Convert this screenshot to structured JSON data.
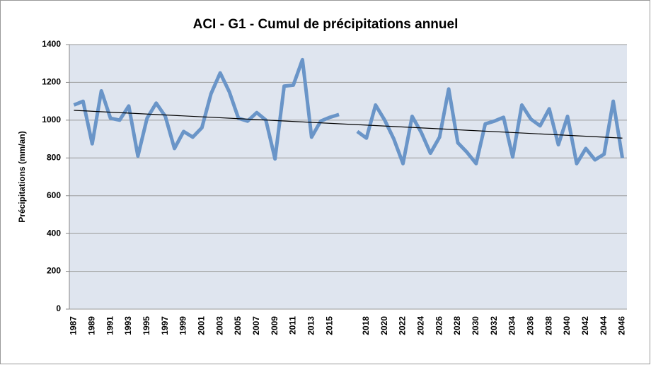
{
  "chart_data": {
    "type": "line",
    "title": "ACI - G1 - Cumul de précipitations annuel",
    "y_label": "Précipitations (mm/an)",
    "categories": [
      "1987",
      null,
      "1989",
      null,
      "1991",
      null,
      "1993",
      null,
      "1995",
      null,
      "1997",
      null,
      "1999",
      null,
      "2001",
      null,
      "2003",
      null,
      "2005",
      null,
      "2007",
      null,
      "2009",
      null,
      "2011",
      null,
      "2013",
      null,
      "2015",
      null,
      null,
      null,
      "2018",
      null,
      "2020",
      null,
      "2022",
      null,
      "2024",
      null,
      "2026",
      null,
      "2028",
      null,
      "2030",
      null,
      "2032",
      null,
      "2034",
      null,
      "2036",
      null,
      "2038",
      null,
      "2040",
      null,
      "2042",
      null,
      "2044",
      null,
      "2046"
    ],
    "series": [
      {
        "color": "#6a95c8",
        "values": [
          1080,
          1100,
          875,
          1155,
          1010,
          1000,
          1075,
          810,
          1010,
          1090,
          1020,
          850,
          940,
          910,
          960,
          1140,
          1250,
          1150,
          1010,
          995,
          1040,
          1000,
          795,
          1180,
          1185,
          1320,
          910,
          995,
          1015,
          1030,
          null,
          940,
          905,
          1080,
          1000,
          900,
          770,
          1020,
          935,
          825,
          910,
          1165,
          880,
          830,
          770,
          980,
          995,
          1015,
          805,
          1080,
          1005,
          970,
          1060,
          870,
          1020,
          770,
          850,
          790,
          820,
          1100,
          800
        ]
      }
    ],
    "trendline": {
      "color": "#000000",
      "start": 1052,
      "end": 905
    },
    "ylim": [
      0,
      1400
    ],
    "yticks": [
      0,
      200,
      400,
      600,
      800,
      1000,
      1200,
      1400
    ],
    "grid": true
  }
}
